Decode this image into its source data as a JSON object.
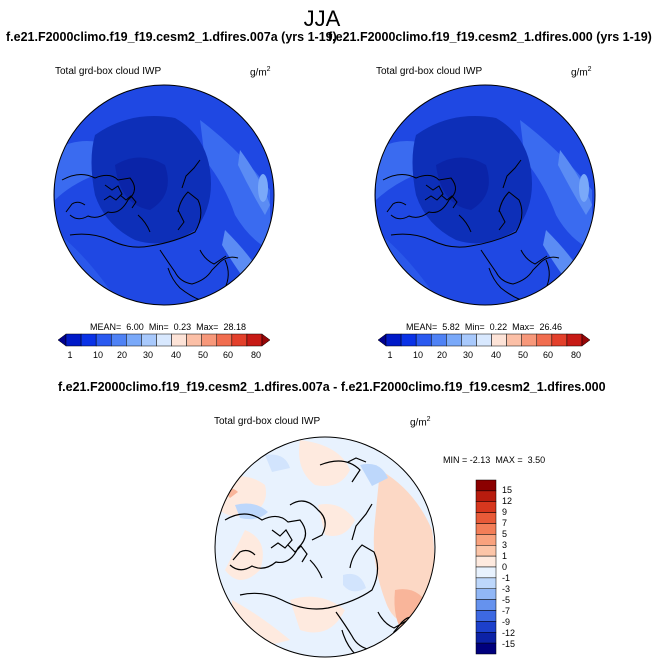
{
  "title": "JJA",
  "panels": [
    {
      "title": "f.e21.F2000climo.f19_f19.cesm2_1.dfires.007a (yrs 1-19)",
      "variable": "Total grd-box cloud IWP",
      "units": "g/m",
      "units_exp": "2",
      "stats": {
        "mean_label": "MEAN=",
        "mean": "6.00",
        "min_label": "Min=",
        "min": "0.23",
        "max_label": "Max=",
        "max": "28.18"
      }
    },
    {
      "title": "f.e21.F2000climo.f19_f19.cesm2_1.dfires.000 (yrs 1-19)",
      "variable": "Total grd-box cloud IWP",
      "units": "g/m",
      "units_exp": "2",
      "stats": {
        "mean_label": "MEAN=",
        "mean": "5.82",
        "min_label": "Min=",
        "min": "0.22",
        "max_label": "Max=",
        "max": "26.46"
      }
    }
  ],
  "abs_colorbar": {
    "labels": [
      "1",
      "10",
      "20",
      "30",
      "40",
      "50",
      "60",
      "80"
    ],
    "colors": [
      "#00008c",
      "#0019c8",
      "#0a32e6",
      "#2a5af0",
      "#4f82f5",
      "#7aa9f9",
      "#a8c9fc",
      "#d8e8fe",
      "#fde3d7",
      "#fbbfa6",
      "#f7987a",
      "#f16d4f",
      "#e3402b",
      "#c71a15",
      "#960707"
    ]
  },
  "diff": {
    "title": "f.e21.F2000climo.f19_f19.cesm2_1.dfires.007a - f.e21.F2000climo.f19_f19.cesm2_1.dfires.000",
    "variable": "Total grd-box cloud IWP",
    "units": "g/m",
    "units_exp": "2",
    "min_label": "MIN =",
    "min": "-2.13",
    "max_label": "MAX =",
    "max": "3.50",
    "colorbar": {
      "labels": [
        "15",
        "12",
        "9",
        "7",
        "5",
        "3",
        "1",
        "0",
        "-1",
        "-3",
        "-5",
        "-7",
        "-9",
        "-12",
        "-15"
      ],
      "colors": [
        "#8b0000",
        "#b81c0e",
        "#d7371e",
        "#e85a38",
        "#f37e58",
        "#f9a27e",
        "#fcc5a8",
        "#feeadf",
        "#e8f2fe",
        "#bdd7fb",
        "#91b7f6",
        "#6592ee",
        "#3d69e2",
        "#1c40cb",
        "#0c22a6",
        "#00007d"
      ]
    }
  }
}
